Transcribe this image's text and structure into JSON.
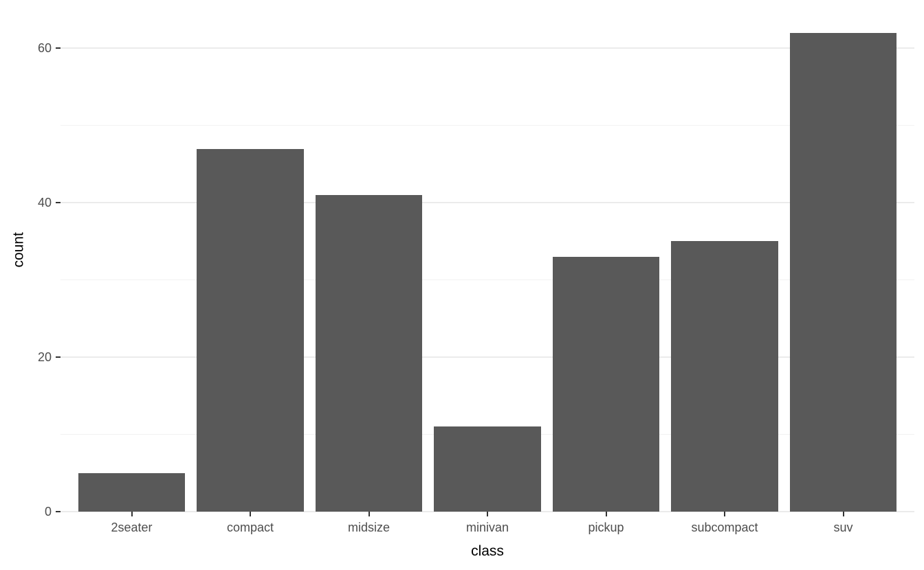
{
  "chart_data": {
    "type": "bar",
    "title": "",
    "categories": [
      "2seater",
      "compact",
      "midsize",
      "minivan",
      "pickup",
      "subcompact",
      "suv"
    ],
    "values": [
      5,
      47,
      41,
      11,
      33,
      35,
      62
    ],
    "xlabel": "class",
    "ylabel": "count",
    "ylim": [
      0,
      65.1
    ],
    "y_major_ticks": [
      0,
      20,
      40,
      60
    ],
    "y_major_gridlines": [
      0,
      20,
      40,
      60
    ],
    "y_minor_gridlines": [
      10,
      30,
      50
    ],
    "legend": "none",
    "grid": "horizontal-only",
    "bar_width_fraction": 0.9,
    "colors": {
      "bar_fill": "#595959",
      "grid_major": "#ebebeb",
      "grid_minor": "#f2f2f2",
      "tick_mark": "#333333",
      "tick_label": "#4d4d4d",
      "axis_title": "#000000",
      "background": "#ffffff"
    }
  }
}
